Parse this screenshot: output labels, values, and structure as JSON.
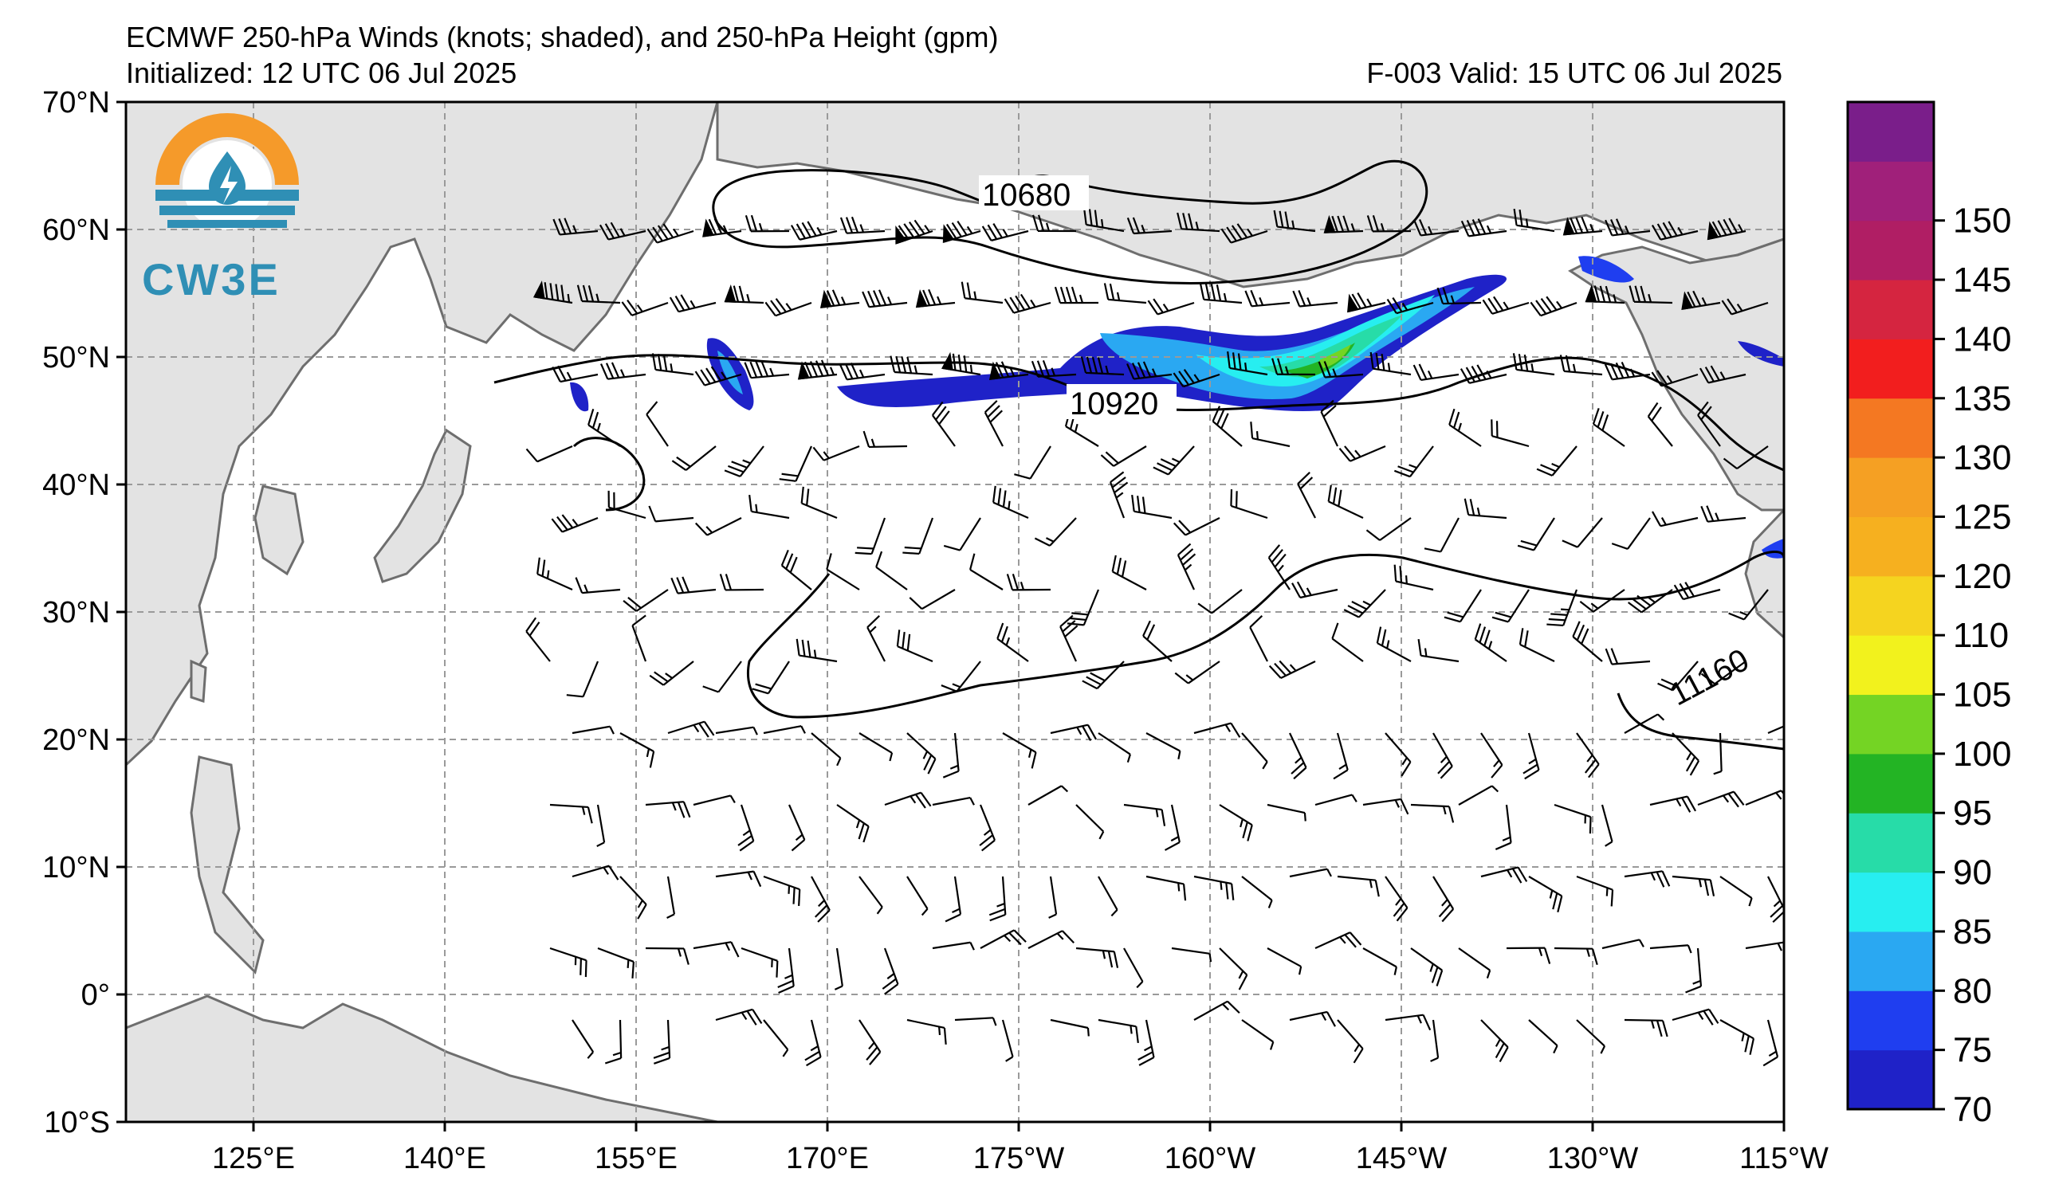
{
  "header": {
    "title": "ECMWF 250-hPa Winds (knots; shaded), and 250-hPa Height (gpm)",
    "initialized": "Initialized: 12 UTC 06 Jul 2025",
    "valid": "F-003  Valid: 15 UTC 06 Jul 2025"
  },
  "logo": {
    "text": "CW3E",
    "colors": {
      "sun": "#f59a2a",
      "sea": "#2f8fb5"
    }
  },
  "map": {
    "lat_labels": [
      "70°N",
      "60°N",
      "50°N",
      "40°N",
      "30°N",
      "20°N",
      "10°N",
      "0°",
      "10°S"
    ],
    "lon_labels": [
      "125°E",
      "140°E",
      "155°E",
      "170°E",
      "175°W",
      "160°W",
      "145°W",
      "130°W",
      "115°W"
    ],
    "lat_range": [
      -10,
      70
    ],
    "lon_range": [
      115,
      245
    ],
    "contour_labels": [
      "10680",
      "10920",
      "11160"
    ],
    "colors": {
      "land": "#e3e3e3",
      "coast": "#6e6e6e",
      "grid": "#9a9a9a"
    }
  },
  "colorbar": {
    "labels": [
      "70",
      "75",
      "80",
      "85",
      "90",
      "95",
      "100",
      "105",
      "110",
      "120",
      "125",
      "130",
      "135",
      "140",
      "145",
      "150"
    ],
    "colors": [
      "#1f22c8",
      "#1f3ef0",
      "#2aa8f2",
      "#27eef0",
      "#27dca8",
      "#23b424",
      "#74d424",
      "#f2f21d",
      "#f5d41f",
      "#f6b01f",
      "#f5a023",
      "#f47822",
      "#f21e1e",
      "#d52540",
      "#b01e64",
      "#a0207a",
      "#7a1e8a"
    ]
  }
}
